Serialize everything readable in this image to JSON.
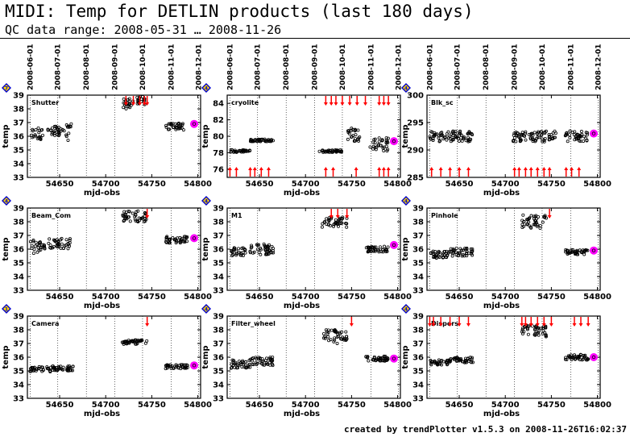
{
  "header": {
    "title": "MIDI: Temp for DETLIN products (last 180 days)",
    "subtitle": "QC data range: 2008-05-31 … 2008-11-26"
  },
  "footer": {
    "credit": "created by trendPlotter v1.5.3 on 2008-11-26T16:02:37"
  },
  "colors": {
    "data": "#000000",
    "outlier": "#ff0000",
    "latest": "#ff00ff",
    "badge_fill": "#ffd700",
    "badge_stroke": "#0000cc"
  },
  "chart_data": [
    {
      "type": "scatter",
      "label": "Shutter",
      "badge": "7",
      "xlabel": "mjd-obs",
      "ylabel": "temp",
      "ylim": [
        33,
        39
      ],
      "yticks": [
        33,
        34,
        35,
        36,
        37,
        38,
        39
      ],
      "xlim": [
        54615,
        54803
      ],
      "xticks": [
        54650,
        54700,
        54750,
        54800
      ],
      "date_ticks": [
        "2008-06-01",
        "2008-07-01",
        "2008-08-01",
        "2008-09-01",
        "2008-10-01",
        "2008-11-01",
        "2008-12-01"
      ],
      "clusters": [
        [
          54618,
          54632,
          36.1,
          0.5
        ],
        [
          54637,
          54655,
          36.4,
          0.35
        ],
        [
          54657,
          54664,
          36.3,
          0.6
        ],
        [
          54718,
          54730,
          38.4,
          0.4
        ],
        [
          54733,
          54745,
          38.6,
          0.3
        ],
        [
          54765,
          54785,
          36.7,
          0.25
        ]
      ],
      "outliers_top": [
        54722,
        54730,
        54737,
        54742,
        54745
      ],
      "outliers_bottom": [],
      "latest": {
        "x": 54796,
        "y": 36.9
      }
    },
    {
      "type": "scatter",
      "label": "cryolite",
      "badge": "4",
      "xlabel": "mjd-obs",
      "ylabel": "temp",
      "ylim": [
        75,
        85
      ],
      "yticks": [
        76,
        78,
        80,
        82,
        84
      ],
      "xlim": [
        54615,
        54803
      ],
      "xticks": [
        54650,
        54700,
        54750,
        54800
      ],
      "date_ticks": [
        "2008-06-01",
        "2008-07-01",
        "2008-08-01",
        "2008-09-01",
        "2008-10-01",
        "2008-11-01",
        "2008-12-01"
      ],
      "clusters": [
        [
          54618,
          54640,
          78.2,
          0.15
        ],
        [
          54640,
          54665,
          79.5,
          0.15
        ],
        [
          54715,
          54740,
          78.2,
          0.15
        ],
        [
          54745,
          54760,
          80.2,
          0.8
        ],
        [
          54770,
          54790,
          79.0,
          0.8
        ]
      ],
      "outliers_top": [
        54722,
        54728,
        54733,
        54740,
        54748,
        54756,
        54765,
        54780,
        54785,
        54790
      ],
      "outliers_bottom": [
        54618,
        54625,
        54640,
        54645,
        54652,
        54660,
        54722,
        54730,
        54755,
        54780,
        54785,
        54790
      ],
      "latest": {
        "x": 54796,
        "y": 79.4
      }
    },
    {
      "type": "scatter",
      "label": "Blk_sc",
      "badge": "4",
      "xlabel": "mjd-obs",
      "ylabel": "temp",
      "ylim": [
        285,
        300
      ],
      "yticks": [
        285,
        290,
        295,
        300
      ],
      "xlim": [
        54615,
        54803
      ],
      "xticks": [
        54650,
        54700,
        54750,
        54800
      ],
      "date_ticks": [
        "2008-06-01",
        "2008-07-01",
        "2008-08-01",
        "2008-09-01",
        "2008-10-01",
        "2008-11-01",
        "2008-12-01"
      ],
      "clusters": [
        [
          54618,
          54665,
          292.5,
          1.0
        ],
        [
          54708,
          54755,
          292.5,
          1.0
        ],
        [
          54765,
          54790,
          292.5,
          1.0
        ]
      ],
      "outliers_top": [],
      "outliers_bottom": [
        54620,
        54630,
        54640,
        54650,
        54660,
        54710,
        54715,
        54722,
        54728,
        54735,
        54742,
        54748,
        54766,
        54772,
        54780
      ],
      "latest": {
        "x": 54796,
        "y": 293.0
      }
    },
    {
      "type": "scatter",
      "label": "Beam_Com",
      "badge": "4",
      "xlabel": "mjd-obs",
      "ylabel": "temp",
      "ylim": [
        33,
        39
      ],
      "yticks": [
        33,
        34,
        35,
        36,
        37,
        38,
        39
      ],
      "xlim": [
        54615,
        54803
      ],
      "xticks": [
        54650,
        54700,
        54750,
        54800
      ],
      "date_ticks": [
        "2008-06-01",
        "2008-07-01",
        "2008-08-01",
        "2008-09-01",
        "2008-10-01",
        "2008-11-01",
        "2008-12-01"
      ],
      "clusters": [
        [
          54618,
          54635,
          36.2,
          0.5
        ],
        [
          54638,
          54662,
          36.4,
          0.4
        ],
        [
          54718,
          54745,
          38.4,
          0.4
        ],
        [
          54765,
          54790,
          36.7,
          0.25
        ]
      ],
      "outliers_top": [
        54745
      ],
      "outliers_bottom": [],
      "latest": {
        "x": 54796,
        "y": 36.8
      }
    },
    {
      "type": "scatter",
      "label": "M1",
      "badge": "4",
      "xlabel": "mjd-obs",
      "ylabel": "temp",
      "ylim": [
        33,
        39
      ],
      "yticks": [
        33,
        34,
        35,
        36,
        37,
        38,
        39
      ],
      "xlim": [
        54615,
        54803
      ],
      "xticks": [
        54650,
        54700,
        54750,
        54800
      ],
      "date_ticks": [
        "2008-06-01",
        "2008-07-01",
        "2008-08-01",
        "2008-09-01",
        "2008-10-01",
        "2008-11-01",
        "2008-12-01"
      ],
      "clusters": [
        [
          54618,
          54635,
          35.8,
          0.3
        ],
        [
          54638,
          54665,
          36.0,
          0.4
        ],
        [
          54718,
          54745,
          38.0,
          0.4
        ],
        [
          54765,
          54790,
          36.0,
          0.2
        ]
      ],
      "outliers_top": [
        54728,
        54735,
        54745
      ],
      "outliers_bottom": [],
      "latest": {
        "x": 54796,
        "y": 36.3
      }
    },
    {
      "type": "scatter",
      "label": "Pinhole",
      "badge": "4",
      "xlabel": "mjd-obs",
      "ylabel": "temp",
      "ylim": [
        33,
        39
      ],
      "yticks": [
        33,
        34,
        35,
        36,
        37,
        38,
        39
      ],
      "xlim": [
        54615,
        54803
      ],
      "xticks": [
        54650,
        54700,
        54750,
        54800
      ],
      "date_ticks": [
        "2008-06-01",
        "2008-07-01",
        "2008-08-01",
        "2008-09-01",
        "2008-10-01",
        "2008-11-01",
        "2008-12-01"
      ],
      "clusters": [
        [
          54618,
          54640,
          35.6,
          0.25
        ],
        [
          54640,
          54665,
          35.8,
          0.3
        ],
        [
          54718,
          54745,
          38.0,
          0.5
        ],
        [
          54765,
          54790,
          35.8,
          0.2
        ]
      ],
      "outliers_top": [
        54748
      ],
      "outliers_bottom": [],
      "latest": {
        "x": 54796,
        "y": 35.9
      }
    },
    {
      "type": "scatter",
      "label": "Camera",
      "badge": "1",
      "xlabel": "mjd-obs",
      "ylabel": "temp",
      "ylim": [
        33,
        39
      ],
      "yticks": [
        33,
        34,
        35,
        36,
        37,
        38,
        39
      ],
      "xlim": [
        54615,
        54803
      ],
      "xticks": [
        54650,
        54700,
        54750,
        54800
      ],
      "date_ticks": [
        "2008-06-01",
        "2008-07-01",
        "2008-08-01",
        "2008-09-01",
        "2008-10-01",
        "2008-11-01",
        "2008-12-01"
      ],
      "clusters": [
        [
          54618,
          54640,
          35.1,
          0.2
        ],
        [
          54640,
          54665,
          35.2,
          0.2
        ],
        [
          54718,
          54745,
          37.1,
          0.15
        ],
        [
          54765,
          54790,
          35.3,
          0.15
        ]
      ],
      "outliers_top": [
        54745
      ],
      "outliers_bottom": [],
      "latest": {
        "x": 54796,
        "y": 35.4
      }
    },
    {
      "type": "scatter",
      "label": "Filter_wheel",
      "badge": "4",
      "xlabel": "mjd-obs",
      "ylabel": "temp",
      "ylim": [
        33,
        39
      ],
      "yticks": [
        33,
        34,
        35,
        36,
        37,
        38,
        39
      ],
      "xlim": [
        54615,
        54803
      ],
      "xticks": [
        54650,
        54700,
        54750,
        54800
      ],
      "date_ticks": [
        "2008-06-01",
        "2008-07-01",
        "2008-08-01",
        "2008-09-01",
        "2008-10-01",
        "2008-11-01",
        "2008-12-01"
      ],
      "clusters": [
        [
          54618,
          54640,
          35.5,
          0.3
        ],
        [
          54640,
          54665,
          35.7,
          0.3
        ],
        [
          54718,
          54745,
          37.5,
          0.5
        ],
        [
          54765,
          54790,
          35.9,
          0.2
        ]
      ],
      "outliers_top": [
        54750
      ],
      "outliers_bottom": [],
      "latest": {
        "x": 54796,
        "y": 35.9
      }
    },
    {
      "type": "scatter",
      "label": "Dispers",
      "badge": "4",
      "xlabel": "mjd-obs",
      "ylabel": "temp",
      "ylim": [
        33,
        39
      ],
      "yticks": [
        33,
        34,
        35,
        36,
        37,
        38,
        39
      ],
      "xlim": [
        54615,
        54803
      ],
      "xticks": [
        54650,
        54700,
        54750,
        54800
      ],
      "date_ticks": [
        "2008-06-01",
        "2008-07-01",
        "2008-08-01",
        "2008-09-01",
        "2008-10-01",
        "2008-11-01",
        "2008-12-01"
      ],
      "clusters": [
        [
          54618,
          54640,
          35.6,
          0.2
        ],
        [
          54640,
          54665,
          35.8,
          0.2
        ],
        [
          54718,
          54745,
          37.9,
          0.4
        ],
        [
          54765,
          54790,
          36.0,
          0.2
        ]
      ],
      "outliers_top": [
        54618,
        54622,
        54630,
        54640,
        54650,
        54660,
        54718,
        54722,
        54728,
        54735,
        54742,
        54750,
        54775,
        54782,
        54790
      ],
      "outliers_bottom": [],
      "latest": {
        "x": 54796,
        "y": 36.0
      }
    }
  ]
}
